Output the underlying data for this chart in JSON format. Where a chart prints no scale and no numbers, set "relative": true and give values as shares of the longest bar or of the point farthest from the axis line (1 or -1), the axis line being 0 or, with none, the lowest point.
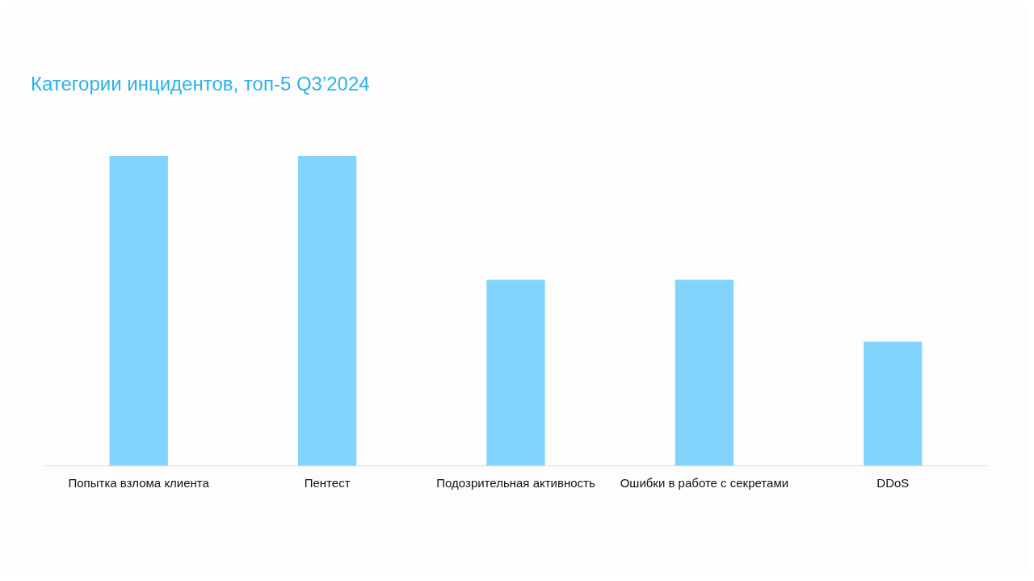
{
  "chart_data": {
    "type": "bar",
    "title": "Категории инцидентов, топ-5 Q3’2024",
    "categories": [
      "Попытка взлома клиента",
      "Пентест",
      "Подозрительная активность",
      "Ошибки в работе с секретами",
      "DDoS"
    ],
    "values": [
      1,
      1,
      0.6,
      0.6,
      0.4
    ],
    "color": "#82d4fc",
    "relative": true
  }
}
